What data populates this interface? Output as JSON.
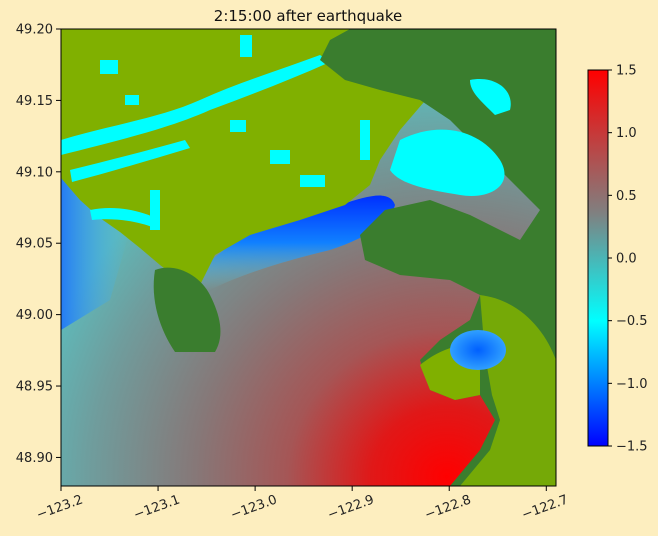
{
  "chart_data": {
    "type": "heatmap",
    "title": "2:15:00 after earthquake",
    "xlabel": "",
    "ylabel": "",
    "xlim": [
      -123.2,
      -122.69
    ],
    "ylim": [
      48.88,
      49.2
    ],
    "x_ticks": [
      -123.2,
      -123.1,
      -123.0,
      -122.9,
      -122.8,
      -122.7
    ],
    "x_tick_labels": [
      "−123.2",
      "−123.1",
      "−123.0",
      "−122.9",
      "−122.8",
      "−122.7"
    ],
    "y_ticks": [
      48.9,
      48.95,
      49.0,
      49.05,
      49.1,
      49.15,
      49.2
    ],
    "y_tick_labels": [
      "48.90",
      "48.95",
      "49.00",
      "49.05",
      "49.10",
      "49.15",
      "49.20"
    ],
    "colorbar": {
      "range": [
        -1.5,
        1.5
      ],
      "ticks": [
        -1.5,
        -1.0,
        -0.5,
        0.0,
        0.5,
        1.0,
        1.5
      ],
      "tick_labels": [
        "−1.5",
        "−1.0",
        "−0.5",
        "0.0",
        "0.5",
        "1.0",
        "1.5"
      ],
      "colors": [
        "#0000ff",
        "#00ffff",
        "#808080",
        "#ff0000"
      ]
    },
    "land_colors": {
      "lowland": "#80b000",
      "highland": "#3a7d2e",
      "flooded": "#00ffff"
    },
    "grid": false
  }
}
